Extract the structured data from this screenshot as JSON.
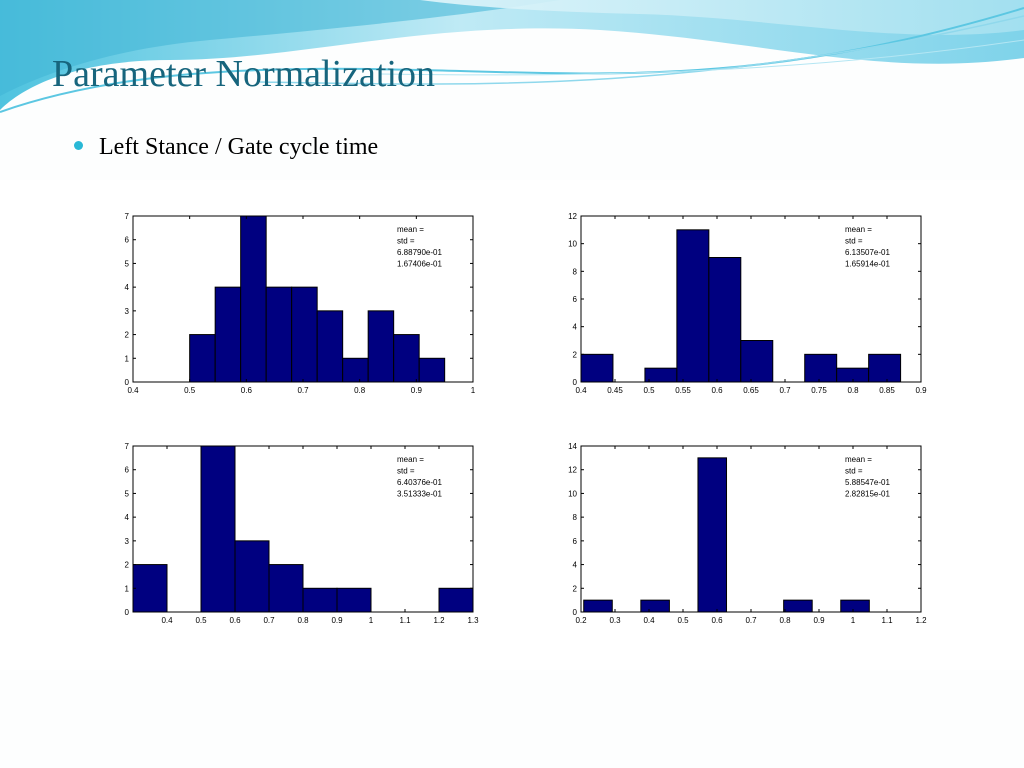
{
  "slide": {
    "title": "Parameter Normalization",
    "bullet": "Left Stance / Gate cycle time"
  },
  "colors": {
    "title": "#17657d",
    "bullet": "#29b8d6",
    "bar": "#000080",
    "wave_light": "#c9eef6",
    "wave_dark": "#48bfdc"
  },
  "chart_data": [
    {
      "type": "bar",
      "title": "",
      "xlabel": "",
      "ylabel": "",
      "xlim": [
        0.4,
        1.0
      ],
      "ylim": [
        0,
        7
      ],
      "xticks": [
        "0.4",
        "0.5",
        "0.6",
        "0.7",
        "0.8",
        "0.9",
        "1"
      ],
      "yticks": [
        "0",
        "1",
        "2",
        "3",
        "4",
        "5",
        "6",
        "7"
      ],
      "bins": [
        {
          "from": 0.5,
          "to": 0.545,
          "count": 2
        },
        {
          "from": 0.545,
          "to": 0.59,
          "count": 4
        },
        {
          "from": 0.59,
          "to": 0.635,
          "count": 7
        },
        {
          "from": 0.635,
          "to": 0.68,
          "count": 4
        },
        {
          "from": 0.68,
          "to": 0.725,
          "count": 4
        },
        {
          "from": 0.725,
          "to": 0.77,
          "count": 3
        },
        {
          "from": 0.77,
          "to": 0.815,
          "count": 1
        },
        {
          "from": 0.815,
          "to": 0.86,
          "count": 3
        },
        {
          "from": 0.86,
          "to": 0.905,
          "count": 2
        },
        {
          "from": 0.905,
          "to": 0.95,
          "count": 1
        }
      ],
      "annotation": [
        "mean =",
        "std =",
        "6.88790e-01",
        "1.67406e-01"
      ],
      "grid": false
    },
    {
      "type": "bar",
      "title": "",
      "xlabel": "",
      "ylabel": "",
      "xlim": [
        0.4,
        0.9
      ],
      "ylim": [
        0,
        12
      ],
      "xticks": [
        "0.4",
        "0.45",
        "0.5",
        "0.55",
        "0.6",
        "0.65",
        "0.7",
        "0.75",
        "0.8",
        "0.85",
        "0.9"
      ],
      "yticks": [
        "0",
        "2",
        "4",
        "6",
        "8",
        "10",
        "12"
      ],
      "bins": [
        {
          "from": 0.4,
          "to": 0.447,
          "count": 2
        },
        {
          "from": 0.447,
          "to": 0.494,
          "count": 0
        },
        {
          "from": 0.494,
          "to": 0.541,
          "count": 1
        },
        {
          "from": 0.541,
          "to": 0.588,
          "count": 11
        },
        {
          "from": 0.588,
          "to": 0.635,
          "count": 9
        },
        {
          "from": 0.635,
          "to": 0.682,
          "count": 3
        },
        {
          "from": 0.682,
          "to": 0.729,
          "count": 0
        },
        {
          "from": 0.729,
          "to": 0.776,
          "count": 2
        },
        {
          "from": 0.776,
          "to": 0.823,
          "count": 1
        },
        {
          "from": 0.823,
          "to": 0.87,
          "count": 2
        }
      ],
      "annotation": [
        "mean =",
        "std =",
        "6.13507e-01",
        "1.65914e-01"
      ],
      "grid": false
    },
    {
      "type": "bar",
      "title": "",
      "xlabel": "",
      "ylabel": "",
      "xlim": [
        0.3,
        1.3
      ],
      "ylim": [
        0,
        7
      ],
      "xticks": [
        "0.4",
        "0.5",
        "0.6",
        "0.7",
        "0.8",
        "0.9",
        "1",
        "1.1",
        "1.2",
        "1.3"
      ],
      "yticks": [
        "0",
        "1",
        "2",
        "3",
        "4",
        "5",
        "6",
        "7"
      ],
      "bins": [
        {
          "from": 0.3,
          "to": 0.4,
          "count": 2
        },
        {
          "from": 0.4,
          "to": 0.5,
          "count": 0
        },
        {
          "from": 0.5,
          "to": 0.6,
          "count": 7
        },
        {
          "from": 0.6,
          "to": 0.7,
          "count": 3
        },
        {
          "from": 0.7,
          "to": 0.8,
          "count": 2
        },
        {
          "from": 0.8,
          "to": 0.9,
          "count": 1
        },
        {
          "from": 0.9,
          "to": 1.0,
          "count": 1
        },
        {
          "from": 1.0,
          "to": 1.1,
          "count": 0
        },
        {
          "from": 1.1,
          "to": 1.2,
          "count": 0
        },
        {
          "from": 1.2,
          "to": 1.3,
          "count": 1
        }
      ],
      "annotation": [
        "mean =",
        "std =",
        "6.40376e-01",
        "3.51333e-01"
      ],
      "grid": false
    },
    {
      "type": "bar",
      "title": "",
      "xlabel": "",
      "ylabel": "",
      "xlim": [
        0.2,
        1.2
      ],
      "ylim": [
        0,
        14
      ],
      "xticks": [
        "0.2",
        "0.3",
        "0.4",
        "0.5",
        "0.6",
        "0.7",
        "0.8",
        "0.9",
        "1",
        "1.1",
        "1.2"
      ],
      "yticks": [
        "0",
        "2",
        "4",
        "6",
        "8",
        "10",
        "12",
        "14"
      ],
      "bins": [
        {
          "from": 0.208,
          "to": 0.292,
          "count": 1
        },
        {
          "from": 0.292,
          "to": 0.376,
          "count": 0
        },
        {
          "from": 0.376,
          "to": 0.46,
          "count": 1
        },
        {
          "from": 0.46,
          "to": 0.544,
          "count": 0
        },
        {
          "from": 0.544,
          "to": 0.628,
          "count": 13
        },
        {
          "from": 0.628,
          "to": 0.712,
          "count": 0
        },
        {
          "from": 0.712,
          "to": 0.796,
          "count": 0
        },
        {
          "from": 0.796,
          "to": 0.88,
          "count": 1
        },
        {
          "from": 0.88,
          "to": 0.964,
          "count": 0
        },
        {
          "from": 0.964,
          "to": 1.048,
          "count": 1
        }
      ],
      "annotation": [
        "mean =",
        "std =",
        "5.88547e-01",
        "2.82815e-01"
      ],
      "grid": false
    }
  ]
}
